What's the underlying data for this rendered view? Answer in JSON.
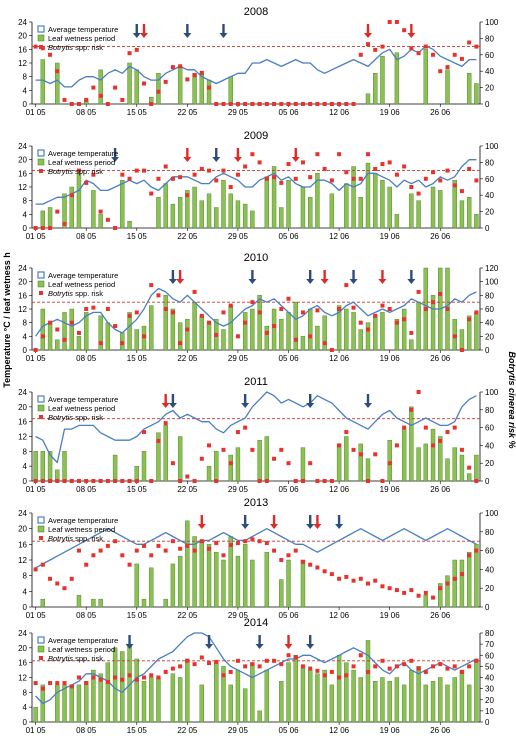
{
  "figure": {
    "ylabel_left": "Temperature °C / leaf wetness h",
    "ylabel_right": "Botrytis cinerea risk %",
    "x_ticks": [
      "01 05",
      "08 05",
      "15 05",
      "22 05",
      "29 05",
      "05 06",
      "12 06",
      "19 06",
      "26 06"
    ],
    "legend": {
      "temperature": "Average temperature",
      "wetness": "Leaf wetness period",
      "risk_prefix": "Botrytis",
      "risk_suffix": " spp. risk"
    },
    "colors": {
      "temperature": "#4a7ec4",
      "wetness": "#8cc152",
      "wetness_border": "#3d7a22",
      "risk": "#e8322d",
      "threshold": "#c0392b",
      "arrow_blue": "#2c4d7a",
      "arrow_red": "#e02a26"
    }
  },
  "chart_data": [
    {
      "type": "bar",
      "title": "2008",
      "x_unit": "day index from 01 05 (0-61)",
      "ylim_left": [
        0,
        24
      ],
      "ylim_right": [
        0,
        100
      ],
      "yticks_left": [
        0,
        4,
        8,
        12,
        16,
        20,
        24
      ],
      "yticks_right": [
        0,
        20,
        40,
        60,
        80,
        100
      ],
      "threshold_right": 70,
      "wetness_h": [
        0,
        13,
        0,
        12,
        0,
        0,
        0,
        1,
        0,
        10,
        0,
        0,
        0,
        12,
        10,
        0,
        2,
        9,
        0,
        0,
        11,
        0,
        9,
        9,
        7,
        0,
        0,
        8,
        0,
        0,
        0,
        0,
        0,
        0,
        0,
        0,
        0,
        0,
        0,
        0,
        0,
        0,
        0,
        0,
        0,
        0,
        3,
        9,
        14,
        0,
        15,
        0,
        0,
        0,
        16,
        0,
        0,
        10,
        0,
        0,
        9,
        6
      ],
      "temperature_c": [
        7,
        7,
        6,
        7,
        5,
        5,
        7,
        8,
        8,
        7,
        9,
        10,
        9,
        11,
        10,
        8,
        7,
        7,
        9,
        10,
        11,
        10,
        10,
        8,
        7,
        6,
        7,
        8,
        9,
        9,
        12,
        12,
        13,
        12,
        11,
        12,
        13,
        12,
        12,
        10,
        9,
        10,
        11,
        12,
        13,
        12,
        11,
        13,
        15,
        16,
        13,
        14,
        16,
        15,
        17,
        16,
        14,
        13,
        12,
        11,
        13,
        13
      ],
      "risk_pct": [
        70,
        68,
        60,
        40,
        5,
        0,
        0,
        5,
        20,
        10,
        0,
        20,
        5,
        62,
        66,
        25,
        0,
        15,
        27,
        45,
        46,
        30,
        35,
        38,
        20,
        0,
        0,
        0,
        0,
        0,
        0,
        0,
        0,
        0,
        0,
        0,
        0,
        0,
        0,
        0,
        0,
        0,
        0,
        0,
        0,
        60,
        73,
        66,
        70,
        100,
        100,
        90,
        68,
        62,
        70,
        60,
        40,
        45,
        60,
        55,
        75,
        70
      ],
      "arrows_blue": [
        14,
        21,
        26
      ],
      "arrows_red": [
        15,
        46,
        52
      ]
    },
    {
      "type": "bar",
      "title": "2009",
      "x_unit": "day index from 01 05 (0-61)",
      "ylim_left": [
        0,
        24
      ],
      "ylim_right": [
        0,
        100
      ],
      "yticks_left": [
        0,
        4,
        8,
        12,
        16,
        20,
        24
      ],
      "yticks_right": [
        0,
        20,
        40,
        60,
        80,
        100
      ],
      "threshold_right": 70,
      "wetness_h": [
        0,
        5,
        6,
        0,
        10,
        12,
        16,
        0,
        11,
        4,
        0,
        0,
        14,
        2,
        0,
        0,
        0,
        9,
        13,
        7,
        9,
        11,
        12,
        8,
        10,
        6,
        14,
        10,
        8,
        7,
        5,
        0,
        15,
        18,
        6,
        14,
        0,
        12,
        9,
        16,
        0,
        10,
        0,
        13,
        18,
        9,
        19,
        16,
        14,
        12,
        4,
        0,
        10,
        8,
        0,
        12,
        11,
        0,
        14,
        8,
        9,
        4
      ],
      "temperature_c": [
        7,
        7,
        8,
        9,
        9,
        10,
        11,
        14,
        13,
        11,
        11,
        12,
        13,
        14,
        13,
        14,
        12,
        11,
        13,
        15,
        15,
        15,
        14,
        13,
        13,
        15,
        16,
        15,
        14,
        12,
        12,
        14,
        15,
        16,
        14,
        15,
        13,
        12,
        12,
        14,
        14,
        13,
        11,
        13,
        12,
        13,
        16,
        16,
        15,
        14,
        12,
        14,
        13,
        14,
        12,
        13,
        15,
        14,
        15,
        18,
        20,
        20
      ],
      "risk_pct": [
        0,
        0,
        0,
        20,
        5,
        40,
        70,
        55,
        65,
        20,
        10,
        0,
        65,
        60,
        70,
        70,
        42,
        60,
        75,
        60,
        62,
        40,
        65,
        72,
        70,
        58,
        70,
        50,
        65,
        75,
        90,
        80,
        60,
        62,
        55,
        78,
        60,
        80,
        62,
        90,
        72,
        58,
        90,
        68,
        60,
        60,
        90,
        72,
        78,
        80,
        65,
        75,
        50,
        42,
        60,
        68,
        58,
        70,
        52,
        45,
        72,
        58
      ],
      "arrows_blue": [
        11,
        25
      ],
      "arrows_red": [
        21,
        28,
        36
      ]
    },
    {
      "type": "bar",
      "title": "2010",
      "x_unit": "day index from 01 05 (0-61)",
      "ylim_left": [
        0,
        24
      ],
      "ylim_right": [
        0,
        120
      ],
      "yticks_left": [
        0,
        4,
        8,
        12,
        16,
        20,
        24
      ],
      "yticks_right": [
        0,
        20,
        40,
        60,
        80,
        100,
        120
      ],
      "threshold_right": 70,
      "wetness_h": [
        0,
        12,
        8,
        3,
        11,
        12,
        4,
        11,
        0,
        10,
        8,
        0,
        5,
        11,
        6,
        7,
        13,
        0,
        16,
        12,
        8,
        9,
        14,
        10,
        8,
        9,
        6,
        13,
        0,
        11,
        12,
        16,
        7,
        12,
        9,
        11,
        14,
        4,
        12,
        7,
        10,
        0,
        13,
        12,
        11,
        6,
        8,
        10,
        11,
        0,
        9,
        12,
        3,
        14,
        24,
        16,
        24,
        24,
        9,
        6,
        10,
        11
      ],
      "temperature_c": [
        4,
        7,
        8,
        9,
        8,
        7,
        8,
        10,
        11,
        11,
        8,
        6,
        5,
        7,
        9,
        12,
        16,
        18,
        17,
        15,
        14,
        16,
        14,
        12,
        10,
        8,
        7,
        8,
        10,
        12,
        13,
        15,
        14,
        15,
        13,
        11,
        9,
        10,
        12,
        13,
        11,
        10,
        11,
        13,
        14,
        12,
        10,
        11,
        12,
        11,
        12,
        13,
        15,
        14,
        13,
        12,
        12,
        13,
        15,
        14,
        16,
        17
      ],
      "risk_pct": [
        0,
        20,
        40,
        30,
        15,
        40,
        25,
        60,
        62,
        10,
        60,
        35,
        10,
        50,
        55,
        20,
        95,
        80,
        60,
        55,
        10,
        30,
        85,
        50,
        40,
        22,
        55,
        65,
        20,
        40,
        70,
        55,
        25,
        35,
        60,
        75,
        15,
        55,
        20,
        58,
        10,
        0,
        60,
        95,
        62,
        40,
        30,
        50,
        65,
        60,
        40,
        45,
        25,
        85,
        60,
        70,
        82,
        60,
        20,
        0,
        45,
        55
      ],
      "arrows_blue": [
        19,
        30,
        38,
        44,
        52
      ],
      "arrows_red": [
        20,
        40,
        48
      ]
    },
    {
      "type": "bar",
      "title": "2011",
      "x_unit": "day index from 01 05 (0-61)",
      "ylim_left": [
        0,
        24
      ],
      "ylim_right": [
        0,
        100
      ],
      "yticks_left": [
        0,
        4,
        8,
        12,
        16,
        20,
        24
      ],
      "yticks_right": [
        0,
        20,
        40,
        60,
        80,
        100
      ],
      "threshold_right": 70,
      "wetness_h": [
        8,
        8,
        8,
        3,
        8,
        0,
        0,
        0,
        0,
        0,
        0,
        7,
        0,
        0,
        4,
        8,
        0,
        13,
        15,
        0,
        12,
        0,
        0,
        0,
        4,
        8,
        0,
        7,
        9,
        0,
        0,
        11,
        12,
        0,
        0,
        0,
        0,
        9,
        0,
        0,
        0,
        0,
        10,
        12,
        0,
        10,
        6,
        0,
        0,
        11,
        0,
        14,
        20,
        9,
        10,
        14,
        12,
        6,
        9,
        7,
        2,
        7
      ],
      "temperature_c": [
        12,
        11,
        7,
        5,
        14,
        14,
        15,
        15,
        15,
        13,
        12,
        11,
        11,
        11,
        12,
        14,
        15,
        16,
        18,
        19,
        17,
        18,
        17,
        16,
        16,
        14,
        13,
        15,
        16,
        17,
        20,
        22,
        24,
        23,
        21,
        22,
        21,
        20,
        21,
        23,
        22,
        21,
        19,
        17,
        16,
        15,
        14,
        16,
        18,
        19,
        17,
        16,
        15,
        16,
        17,
        16,
        15,
        15,
        16,
        20,
        22,
        23
      ],
      "risk_pct": [
        0,
        0,
        0,
        0,
        0,
        0,
        0,
        0,
        0,
        0,
        0,
        0,
        0,
        0,
        0,
        55,
        0,
        45,
        65,
        20,
        0,
        5,
        0,
        25,
        40,
        0,
        35,
        20,
        55,
        60,
        35,
        0,
        0,
        25,
        35,
        20,
        0,
        0,
        20,
        0,
        0,
        0,
        40,
        55,
        35,
        30,
        0,
        30,
        0,
        20,
        40,
        60,
        80,
        100,
        60,
        40,
        45,
        55,
        60,
        35,
        15,
        0
      ],
      "arrows_blue": [
        19,
        29,
        38,
        46
      ],
      "arrows_red": [
        18
      ]
    },
    {
      "type": "bar",
      "title": "2013",
      "x_unit": "day index from 01 05 (0-61)",
      "ylim_left": [
        0,
        24
      ],
      "ylim_right": [
        0,
        100
      ],
      "yticks_left": [
        0,
        4,
        8,
        12,
        16,
        20,
        24
      ],
      "yticks_right": [
        0,
        20,
        40,
        60,
        80,
        100
      ],
      "threshold_right": 70,
      "wetness_h": [
        0,
        2,
        0,
        0,
        0,
        0,
        3,
        0,
        2,
        2,
        0,
        0,
        0,
        0,
        11,
        2,
        10,
        0,
        2,
        11,
        13,
        22,
        18,
        17,
        16,
        14,
        12,
        18,
        13,
        16,
        12,
        0,
        14,
        0,
        7,
        12,
        0,
        12,
        0,
        0,
        0,
        0,
        0,
        0,
        0,
        0,
        0,
        0,
        0,
        0,
        0,
        0,
        0,
        0,
        3,
        0,
        6,
        8,
        12,
        12,
        14,
        16
      ],
      "temperature_c": [
        10,
        11,
        12,
        13,
        14,
        15,
        16,
        17,
        18,
        19,
        20,
        19,
        18,
        17,
        16,
        16,
        17,
        18,
        19,
        18,
        17,
        16,
        16,
        17,
        17,
        18,
        19,
        18,
        17,
        17,
        18,
        19,
        20,
        19,
        18,
        17,
        16,
        16,
        15,
        14,
        15,
        16,
        17,
        18,
        19,
        20,
        19,
        18,
        17,
        18,
        19,
        20,
        19,
        18,
        17,
        18,
        19,
        20,
        19,
        18,
        17,
        16
      ],
      "risk_pct": [
        40,
        45,
        30,
        25,
        20,
        30,
        60,
        45,
        55,
        60,
        65,
        70,
        55,
        45,
        60,
        65,
        55,
        65,
        60,
        70,
        62,
        65,
        60,
        70,
        62,
        68,
        55,
        66,
        68,
        70,
        72,
        70,
        68,
        60,
        50,
        55,
        60,
        48,
        45,
        42,
        38,
        35,
        30,
        32,
        28,
        30,
        25,
        28,
        22,
        20,
        18,
        15,
        18,
        12,
        15,
        10,
        20,
        25,
        30,
        35,
        55,
        60
      ],
      "arrows_blue": [
        29,
        38,
        42
      ],
      "arrows_red": [
        23,
        33,
        39
      ]
    },
    {
      "type": "bar",
      "title": "2014",
      "x_unit": "day index from 01 05 (0-61)",
      "ylim_left": [
        0,
        24
      ],
      "ylim_right": [
        0,
        80
      ],
      "yticks_left": [
        0,
        4,
        8,
        12,
        16,
        20,
        24
      ],
      "yticks_right": [
        0,
        10,
        20,
        30,
        40,
        50,
        60,
        70,
        80
      ],
      "threshold_right": 55,
      "wetness_h": [
        4,
        10,
        0,
        10,
        10,
        10,
        10,
        11,
        14,
        13,
        16,
        20,
        19,
        21,
        17,
        11,
        12,
        12,
        0,
        13,
        12,
        17,
        0,
        10,
        0,
        16,
        15,
        10,
        14,
        9,
        16,
        3,
        14,
        0,
        11,
        16,
        18,
        15,
        14,
        13,
        14,
        10,
        18,
        16,
        14,
        12,
        22,
        11,
        12,
        11,
        12,
        10,
        14,
        15,
        10,
        11,
        12,
        10,
        12,
        14,
        10,
        17
      ],
      "temperature_c": [
        7,
        5,
        6,
        8,
        9,
        10,
        11,
        13,
        13,
        12,
        11,
        9,
        8,
        10,
        12,
        13,
        15,
        17,
        18,
        19,
        21,
        23,
        24,
        24,
        23,
        20,
        17,
        15,
        14,
        13,
        12,
        13,
        14,
        15,
        16,
        17,
        17,
        18,
        18,
        17,
        16,
        17,
        18,
        19,
        20,
        19,
        18,
        16,
        14,
        13,
        15,
        16,
        14,
        13,
        14,
        15,
        16,
        15,
        14,
        15,
        16,
        17
      ],
      "risk_pct": [
        35,
        30,
        35,
        35,
        35,
        32,
        40,
        35,
        40,
        38,
        36,
        40,
        38,
        42,
        38,
        40,
        42,
        40,
        45,
        48,
        50,
        55,
        52,
        58,
        53,
        54,
        42,
        45,
        55,
        50,
        52,
        50,
        55,
        55,
        52,
        60,
        58,
        50,
        48,
        46,
        42,
        45,
        40,
        42,
        50,
        60,
        45,
        50,
        55,
        48,
        50,
        52,
        55,
        48,
        45,
        50,
        52,
        48,
        50,
        45,
        50,
        55
      ],
      "arrows_blue": [
        13,
        24,
        31,
        38
      ],
      "arrows_red": [
        35
      ]
    }
  ]
}
